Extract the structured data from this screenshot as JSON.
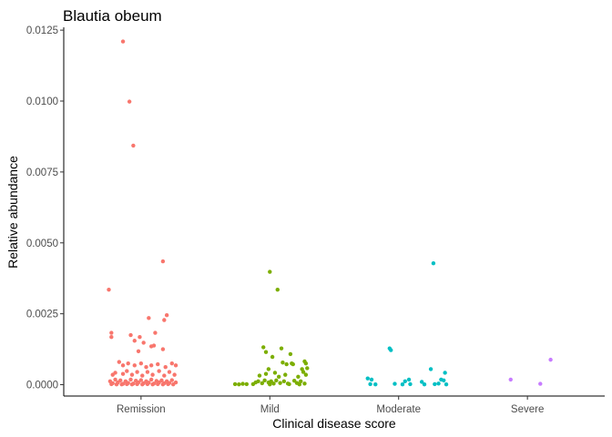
{
  "chart_data": {
    "type": "scatter",
    "title": "Blautia obeum",
    "xlabel": "Clinical disease score",
    "ylabel": "Relative abundance",
    "categories": [
      "Remission",
      "Mild",
      "Moderate",
      "Severe"
    ],
    "ylim": [
      -0.0004,
      0.0126
    ],
    "yticks": [
      0.0,
      0.0025,
      0.005,
      0.0075,
      0.01,
      0.0125
    ],
    "ytick_labels": [
      "0.0000",
      "0.0025",
      "0.0050",
      "0.0075",
      "0.0100",
      "0.0125"
    ],
    "grid": false,
    "legend": "none",
    "series": [
      {
        "category": "Remission",
        "color": "#F8766D",
        "points": [
          {
            "x": 0.75,
            "y": 0.00335
          },
          {
            "x": 0.86,
            "y": 0.0121
          },
          {
            "x": 0.91,
            "y": 0.00998
          },
          {
            "x": 0.94,
            "y": 0.00843
          },
          {
            "x": 1.17,
            "y": 0.00435
          },
          {
            "x": 0.77,
            "y": 0.00183
          },
          {
            "x": 0.77,
            "y": 0.00168
          },
          {
            "x": 0.92,
            "y": 0.00175
          },
          {
            "x": 0.95,
            "y": 0.00155
          },
          {
            "x": 0.99,
            "y": 0.00168
          },
          {
            "x": 1.02,
            "y": 0.00148
          },
          {
            "x": 1.06,
            "y": 0.00235
          },
          {
            "x": 1.11,
            "y": 0.00183
          },
          {
            "x": 1.18,
            "y": 0.00228
          },
          {
            "x": 1.2,
            "y": 0.00245
          },
          {
            "x": 1.08,
            "y": 0.00135
          },
          {
            "x": 1.17,
            "y": 0.00125
          },
          {
            "x": 0.98,
            "y": 0.00118
          },
          {
            "x": 1.1,
            "y": 0.00138
          },
          {
            "x": 0.83,
            "y": 0.0008
          },
          {
            "x": 0.86,
            "y": 0.00068
          },
          {
            "x": 0.9,
            "y": 0.00075
          },
          {
            "x": 0.95,
            "y": 0.00068
          },
          {
            "x": 1.0,
            "y": 0.00075
          },
          {
            "x": 1.04,
            "y": 0.00062
          },
          {
            "x": 1.08,
            "y": 0.00068
          },
          {
            "x": 1.13,
            "y": 0.00072
          },
          {
            "x": 1.19,
            "y": 0.00062
          },
          {
            "x": 1.24,
            "y": 0.00075
          },
          {
            "x": 1.27,
            "y": 0.00068
          },
          {
            "x": 0.78,
            "y": 0.00035
          },
          {
            "x": 0.8,
            "y": 0.00042
          },
          {
            "x": 0.86,
            "y": 0.00038
          },
          {
            "x": 0.89,
            "y": 0.00048
          },
          {
            "x": 0.93,
            "y": 0.00035
          },
          {
            "x": 0.97,
            "y": 0.00045
          },
          {
            "x": 1.01,
            "y": 0.00032
          },
          {
            "x": 1.05,
            "y": 0.00045
          },
          {
            "x": 1.09,
            "y": 0.00035
          },
          {
            "x": 1.14,
            "y": 0.00048
          },
          {
            "x": 1.18,
            "y": 0.00032
          },
          {
            "x": 1.22,
            "y": 0.00045
          },
          {
            "x": 1.26,
            "y": 0.00035
          },
          {
            "x": 0.76,
            "y": 0.00012
          },
          {
            "x": 0.78,
            "y": 5e-05
          },
          {
            "x": 0.8,
            "y": 0.00018
          },
          {
            "x": 0.82,
            "y": 8e-05
          },
          {
            "x": 0.84,
            "y": 0.00015
          },
          {
            "x": 0.86,
            "y": 3e-05
          },
          {
            "x": 0.88,
            "y": 0.00012
          },
          {
            "x": 0.9,
            "y": 6e-05
          },
          {
            "x": 0.92,
            "y": 0.00018
          },
          {
            "x": 0.94,
            "y": 4e-05
          },
          {
            "x": 0.96,
            "y": 0.00014
          },
          {
            "x": 0.98,
            "y": 8e-05
          },
          {
            "x": 1.0,
            "y": 0.00016
          },
          {
            "x": 1.02,
            "y": 5e-05
          },
          {
            "x": 1.04,
            "y": 0.00012
          },
          {
            "x": 1.06,
            "y": 7e-05
          },
          {
            "x": 1.08,
            "y": 0.00018
          },
          {
            "x": 1.1,
            "y": 4e-05
          },
          {
            "x": 1.12,
            "y": 0.00013
          },
          {
            "x": 1.14,
            "y": 8e-05
          },
          {
            "x": 1.16,
            "y": 0.00015
          },
          {
            "x": 1.18,
            "y": 5e-05
          },
          {
            "x": 1.2,
            "y": 0.00012
          },
          {
            "x": 1.22,
            "y": 6e-05
          },
          {
            "x": 1.24,
            "y": 0.00016
          },
          {
            "x": 1.27,
            "y": 8e-05
          },
          {
            "x": 0.77,
            "y": 2e-05
          },
          {
            "x": 0.81,
            "y": 1e-05
          },
          {
            "x": 0.85,
            "y": 1e-05
          },
          {
            "x": 0.89,
            "y": 2e-05
          },
          {
            "x": 0.93,
            "y": 1e-05
          },
          {
            "x": 0.97,
            "y": 2e-05
          },
          {
            "x": 1.01,
            "y": 1e-05
          },
          {
            "x": 1.05,
            "y": 2e-05
          },
          {
            "x": 1.09,
            "y": 1e-05
          },
          {
            "x": 1.13,
            "y": 2e-05
          },
          {
            "x": 1.17,
            "y": 1e-05
          },
          {
            "x": 1.21,
            "y": 2e-05
          },
          {
            "x": 1.25,
            "y": 1e-05
          }
        ]
      },
      {
        "category": "Mild",
        "color": "#7CAE00",
        "points": [
          {
            "x": 2.0,
            "y": 0.00398
          },
          {
            "x": 2.06,
            "y": 0.00335
          },
          {
            "x": 1.95,
            "y": 0.00132
          },
          {
            "x": 2.09,
            "y": 0.00128
          },
          {
            "x": 1.97,
            "y": 0.00115
          },
          {
            "x": 2.02,
            "y": 0.00098
          },
          {
            "x": 2.16,
            "y": 0.00108
          },
          {
            "x": 2.27,
            "y": 0.00082
          },
          {
            "x": 2.28,
            "y": 0.00075
          },
          {
            "x": 2.1,
            "y": 0.00078
          },
          {
            "x": 2.13,
            "y": 0.00072
          },
          {
            "x": 2.17,
            "y": 0.00075
          },
          {
            "x": 2.18,
            "y": 0.00072
          },
          {
            "x": 1.99,
            "y": 0.00055
          },
          {
            "x": 2.04,
            "y": 0.00042
          },
          {
            "x": 2.25,
            "y": 0.00055
          },
          {
            "x": 2.29,
            "y": 0.00058
          },
          {
            "x": 2.26,
            "y": 0.00045
          },
          {
            "x": 1.92,
            "y": 0.00032
          },
          {
            "x": 1.97,
            "y": 0.00038
          },
          {
            "x": 2.07,
            "y": 0.00028
          },
          {
            "x": 2.12,
            "y": 0.00035
          },
          {
            "x": 2.22,
            "y": 0.00028
          },
          {
            "x": 2.28,
            "y": 0.00035
          },
          {
            "x": 1.73,
            "y": 2e-05
          },
          {
            "x": 1.76,
            "y": 1e-05
          },
          {
            "x": 1.79,
            "y": 3e-05
          },
          {
            "x": 1.82,
            "y": 2e-05
          },
          {
            "x": 1.89,
            "y": 8e-05
          },
          {
            "x": 1.91,
            "y": 0.00012
          },
          {
            "x": 1.94,
            "y": 5e-05
          },
          {
            "x": 1.96,
            "y": 0.00015
          },
          {
            "x": 1.99,
            "y": 8e-05
          },
          {
            "x": 2.01,
            "y": 0.00012
          },
          {
            "x": 2.03,
            "y": 4e-05
          },
          {
            "x": 2.05,
            "y": 0.00015
          },
          {
            "x": 2.08,
            "y": 6e-05
          },
          {
            "x": 2.11,
            "y": 0.00012
          },
          {
            "x": 2.14,
            "y": 4e-05
          },
          {
            "x": 2.19,
            "y": 0.00014
          },
          {
            "x": 2.21,
            "y": 6e-05
          },
          {
            "x": 2.24,
            "y": 0.00012
          },
          {
            "x": 2.27,
            "y": 4e-05
          },
          {
            "x": 1.87,
            "y": 2e-05
          },
          {
            "x": 2.0,
            "y": 1e-05
          },
          {
            "x": 2.15,
            "y": 2e-05
          },
          {
            "x": 2.23,
            "y": 1e-05
          }
        ]
      },
      {
        "category": "Moderate",
        "color": "#00BFC4",
        "points": [
          {
            "x": 3.27,
            "y": 0.00428
          },
          {
            "x": 2.93,
            "y": 0.00128
          },
          {
            "x": 2.94,
            "y": 0.00122
          },
          {
            "x": 3.25,
            "y": 0.00055
          },
          {
            "x": 3.36,
            "y": 0.00042
          },
          {
            "x": 2.76,
            "y": 0.00022
          },
          {
            "x": 2.79,
            "y": 0.00018
          },
          {
            "x": 3.33,
            "y": 0.00018
          },
          {
            "x": 3.35,
            "y": 0.00015
          },
          {
            "x": 3.08,
            "y": 0.00018
          },
          {
            "x": 3.05,
            "y": 0.00012
          },
          {
            "x": 3.18,
            "y": 0.0001
          },
          {
            "x": 2.78,
            "y": 2e-05
          },
          {
            "x": 2.82,
            "y": 1e-05
          },
          {
            "x": 2.97,
            "y": 3e-05
          },
          {
            "x": 3.03,
            "y": 1e-05
          },
          {
            "x": 3.09,
            "y": 2e-05
          },
          {
            "x": 3.2,
            "y": 1e-05
          },
          {
            "x": 3.28,
            "y": 2e-05
          },
          {
            "x": 3.31,
            "y": 4e-05
          },
          {
            "x": 3.37,
            "y": 1e-05
          }
        ]
      },
      {
        "category": "Severe",
        "color": "#C77CFF",
        "points": [
          {
            "x": 4.18,
            "y": 0.00088
          },
          {
            "x": 3.87,
            "y": 0.00018
          },
          {
            "x": 4.1,
            "y": 3e-05
          }
        ]
      }
    ]
  }
}
